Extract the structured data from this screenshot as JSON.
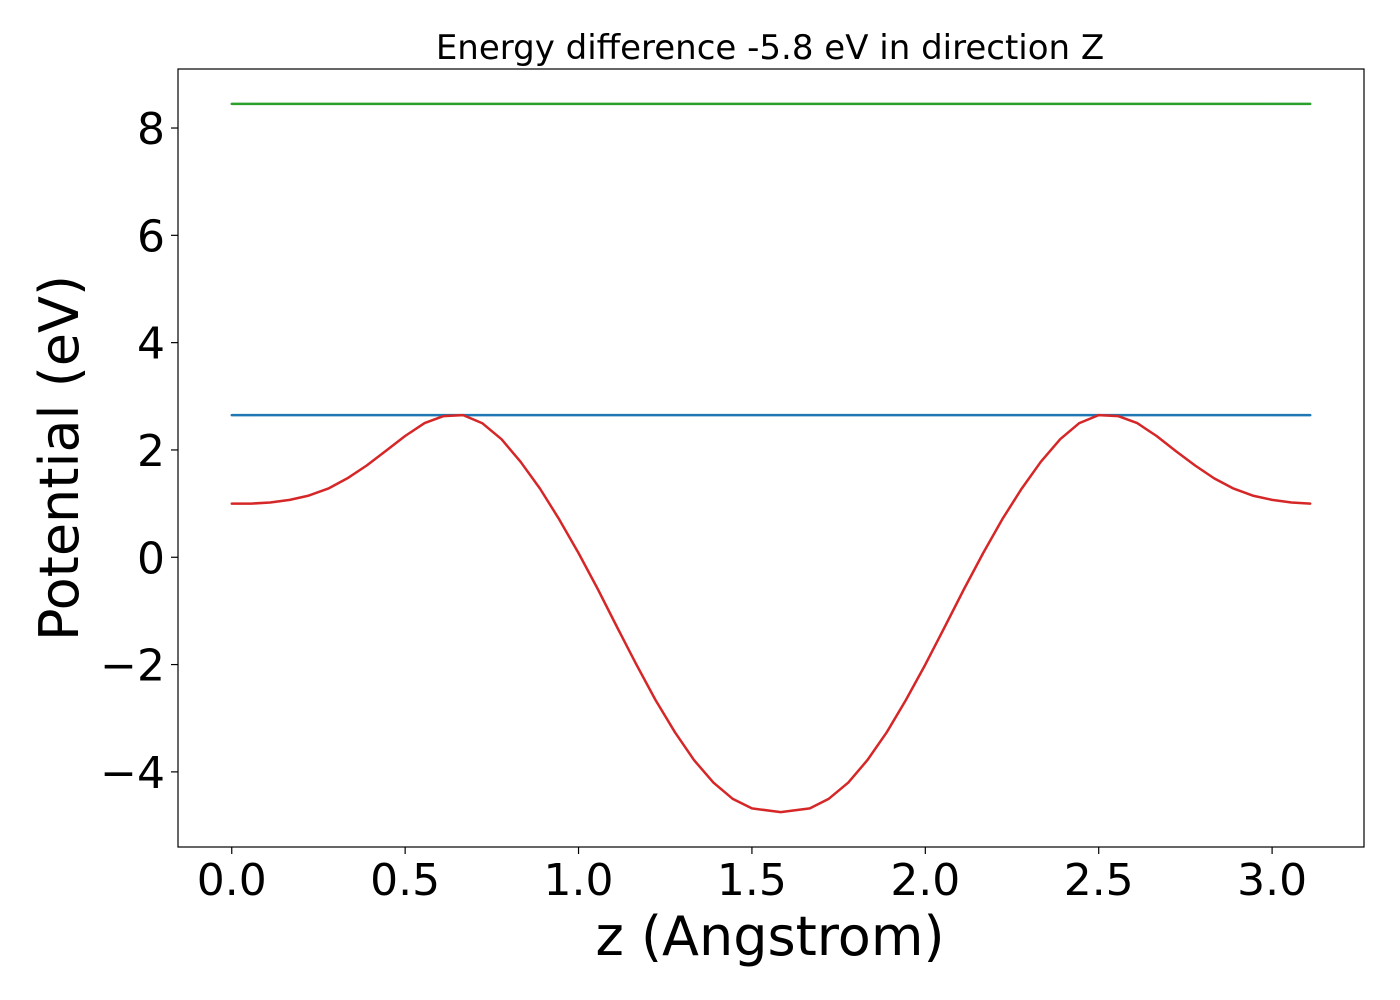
{
  "chart_data": {
    "type": "line",
    "title": "Energy difference -5.8 eV in direction Z",
    "xlabel": "z (Angstrom)",
    "ylabel": "Potential (eV)",
    "xlim": [
      -0.155,
      3.265
    ],
    "ylim": [
      -5.4,
      9.1
    ],
    "xticks": [
      0.0,
      0.5,
      1.0,
      1.5,
      2.0,
      2.5,
      3.0
    ],
    "xtick_labels": [
      "0.0",
      "0.5",
      "1.0",
      "1.5",
      "2.0",
      "2.5",
      "3.0"
    ],
    "yticks": [
      -4,
      -2,
      0,
      2,
      4,
      6,
      8
    ],
    "ytick_labels": [
      "−4",
      "−2",
      "0",
      "2",
      "4",
      "6",
      "8"
    ],
    "grid": false,
    "series": [
      {
        "color": "#2ca02c",
        "x": [
          0.0,
          3.11
        ],
        "y": [
          8.45,
          8.45
        ]
      },
      {
        "color": "#1f77b4",
        "x": [
          0.0,
          3.11
        ],
        "y": [
          2.65,
          2.65
        ]
      },
      {
        "color": "#d62728",
        "x": [
          0.0,
          0.056,
          0.111,
          0.167,
          0.222,
          0.278,
          0.333,
          0.389,
          0.444,
          0.5,
          0.556,
          0.611,
          0.667,
          0.722,
          0.778,
          0.833,
          0.889,
          0.944,
          1.0,
          1.056,
          1.111,
          1.167,
          1.222,
          1.278,
          1.333,
          1.389,
          1.444,
          1.5,
          1.583,
          1.667,
          1.722,
          1.778,
          1.833,
          1.889,
          1.944,
          2.0,
          2.056,
          2.111,
          2.167,
          2.222,
          2.278,
          2.333,
          2.389,
          2.444,
          2.5,
          2.556,
          2.611,
          2.667,
          2.722,
          2.778,
          2.833,
          2.889,
          2.944,
          3.0,
          3.056,
          3.11
        ],
        "y": [
          1.0,
          1.0,
          1.02,
          1.07,
          1.15,
          1.28,
          1.47,
          1.71,
          1.98,
          2.26,
          2.5,
          2.63,
          2.65,
          2.5,
          2.2,
          1.78,
          1.28,
          0.71,
          0.08,
          -0.6,
          -1.3,
          -2.0,
          -2.66,
          -3.26,
          -3.78,
          -4.2,
          -4.5,
          -4.68,
          -4.75,
          -4.68,
          -4.5,
          -4.2,
          -3.78,
          -3.26,
          -2.66,
          -2.0,
          -1.3,
          -0.6,
          0.08,
          0.71,
          1.28,
          1.78,
          2.2,
          2.5,
          2.65,
          2.63,
          2.5,
          2.26,
          1.98,
          1.71,
          1.47,
          1.28,
          1.15,
          1.07,
          1.02,
          1.0
        ]
      }
    ]
  }
}
